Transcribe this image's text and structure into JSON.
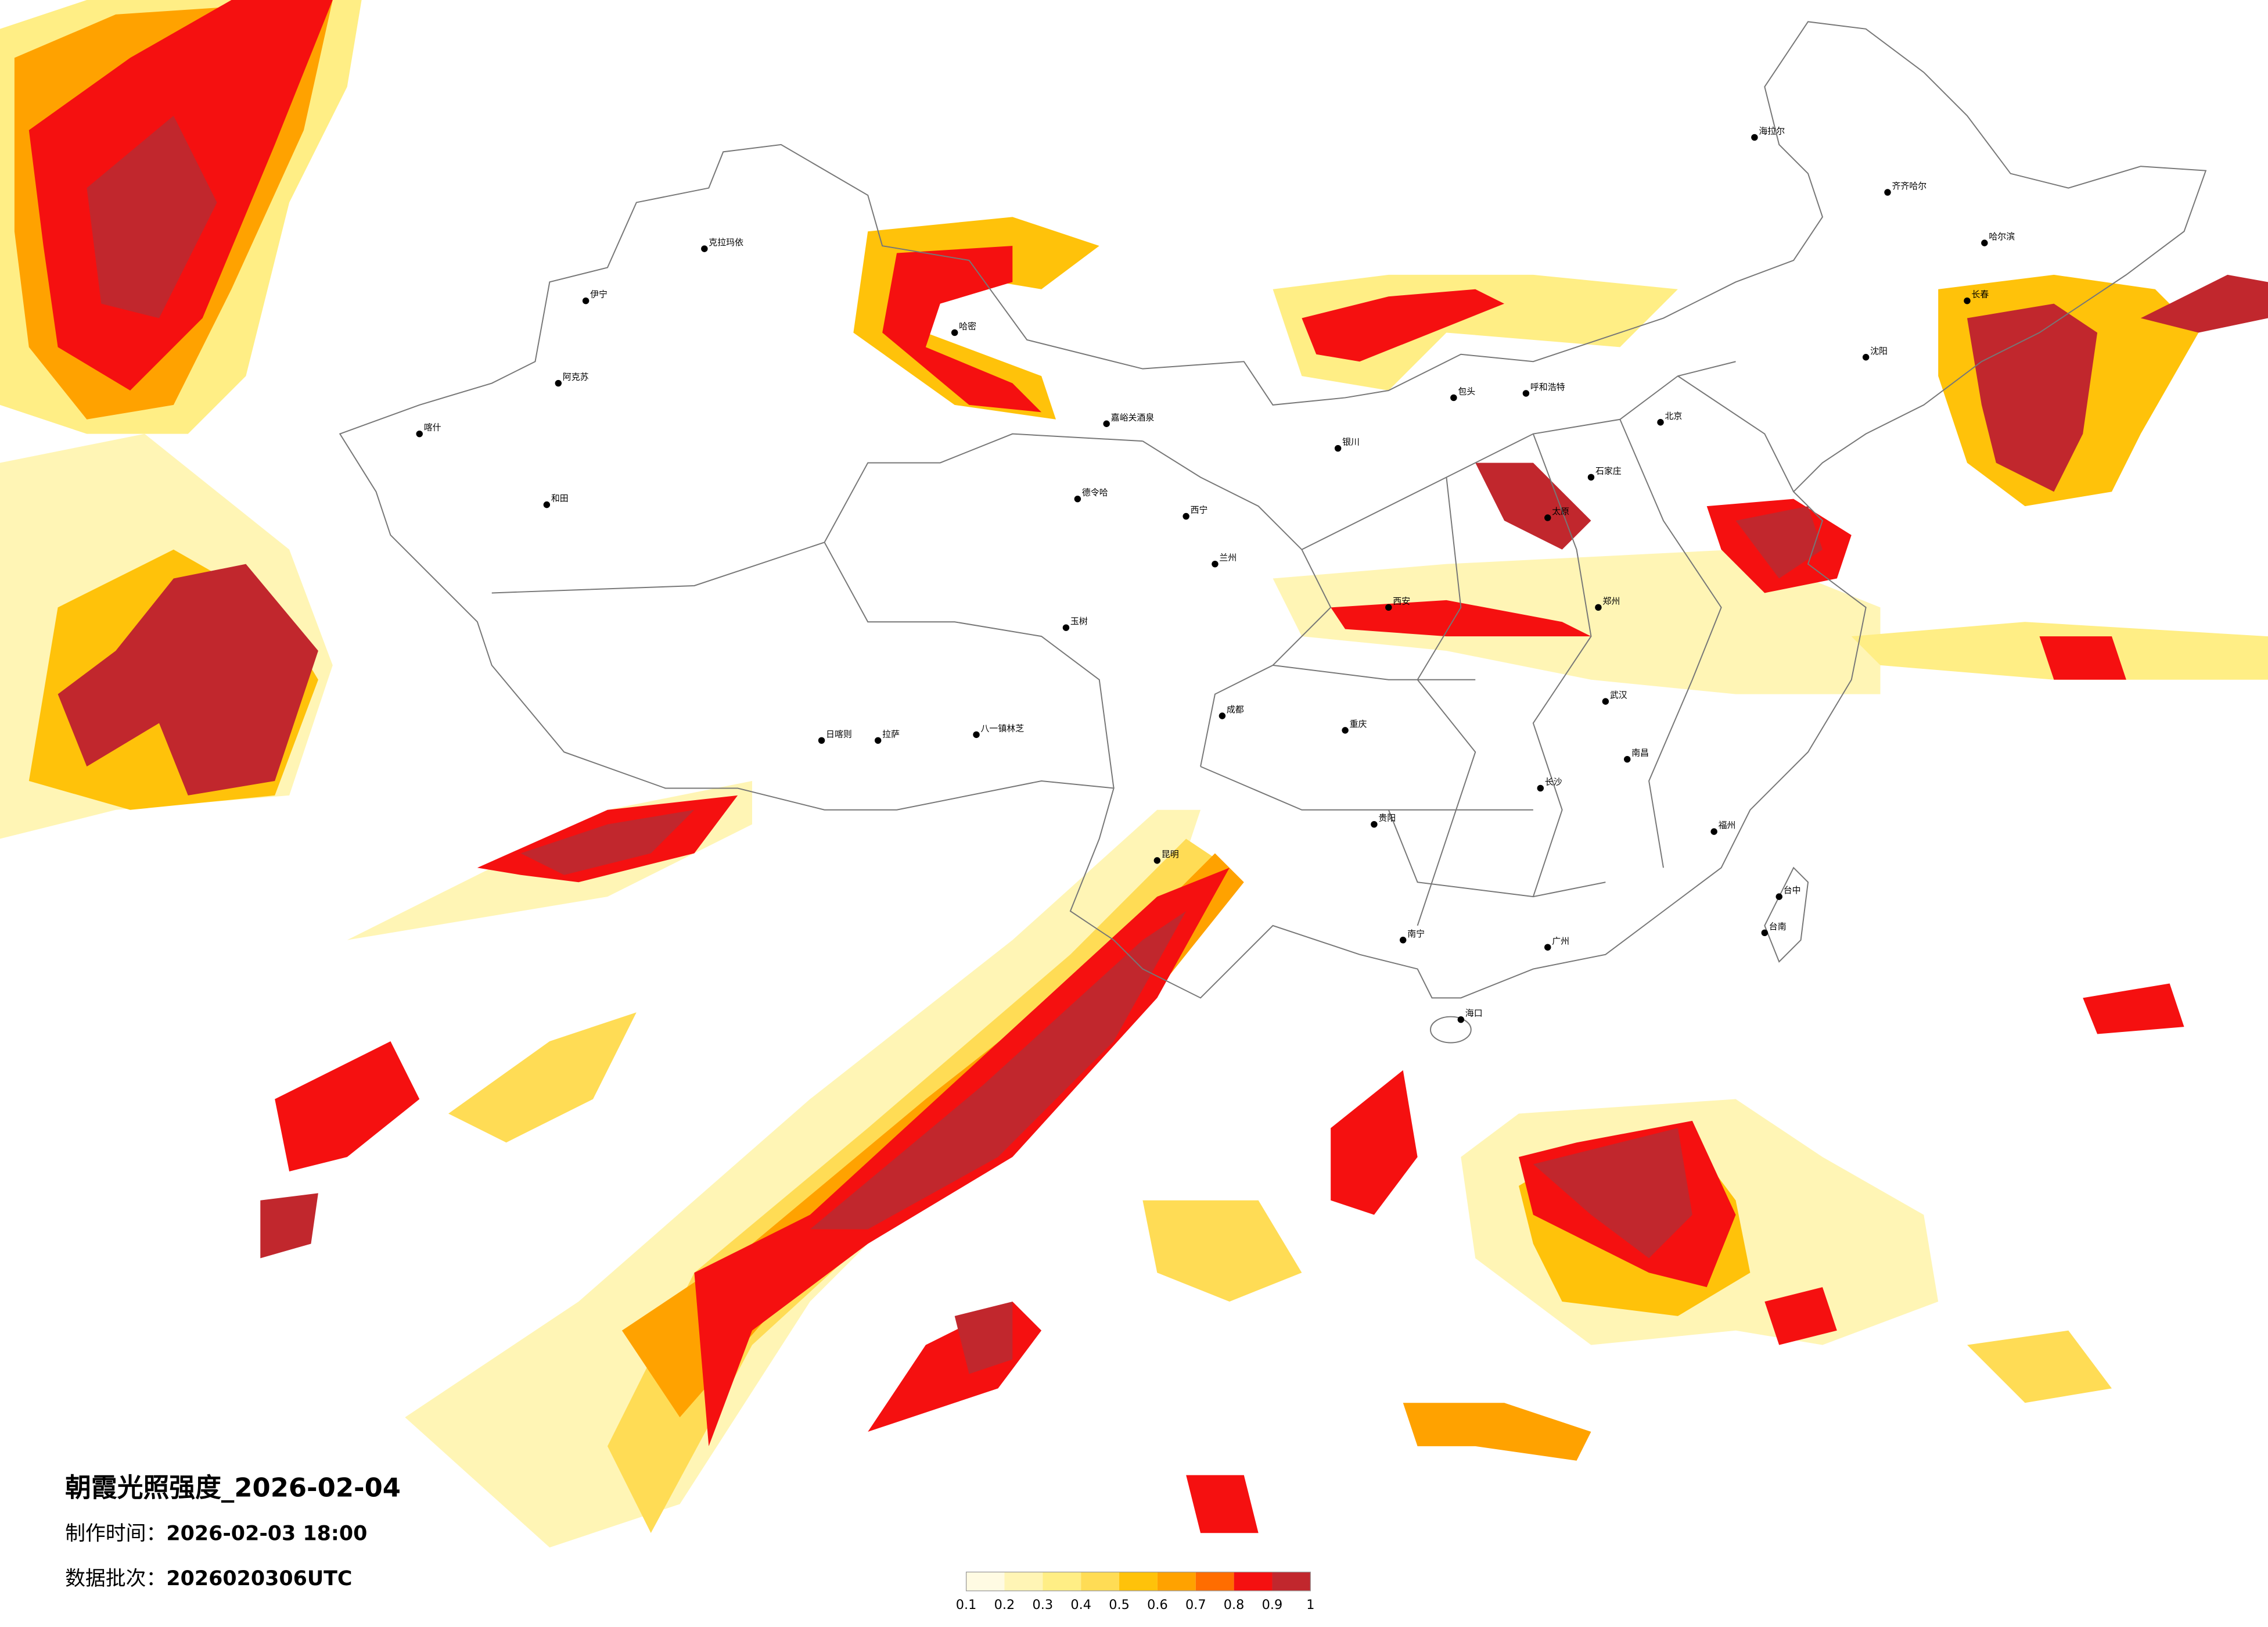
{
  "title": "朝霞光照强度_2026-02-04",
  "make_time": {
    "label": "制作时间：",
    "value": "2026-02-03 18:00"
  },
  "batch": {
    "label": "数据批次：",
    "value": "2026020306UTC"
  },
  "legend": {
    "ticks": [
      0.1,
      0.2,
      0.3,
      0.4,
      0.5,
      0.6,
      0.7,
      0.8,
      0.9,
      1
    ],
    "colors": [
      "#fffbe3",
      "#fff5b5",
      "#ffee85",
      "#ffdc55",
      "#ffc20a",
      "#ffa200",
      "#ff6d00",
      "#f51010",
      "#c1272d"
    ]
  },
  "cities": [
    "克拉玛依",
    "伊宁",
    "阿克苏",
    "喀什",
    "和田",
    "哈密",
    "嘉峪关酒泉",
    "德令哈",
    "玉树",
    "日喀则",
    "拉萨",
    "八一镇林芝",
    "西宁",
    "兰州",
    "银川",
    "包头",
    "呼和浩特",
    "海拉尔",
    "齐齐哈尔",
    "哈尔滨",
    "长春",
    "沈阳",
    "北京",
    "石家庄",
    "太原",
    "西安",
    "郑州",
    "成都",
    "重庆",
    "武汉",
    "南昌",
    "长沙",
    "贵阳",
    "昆明",
    "南宁",
    "广州",
    "福州",
    "海口",
    "台中",
    "台南"
  ]
}
